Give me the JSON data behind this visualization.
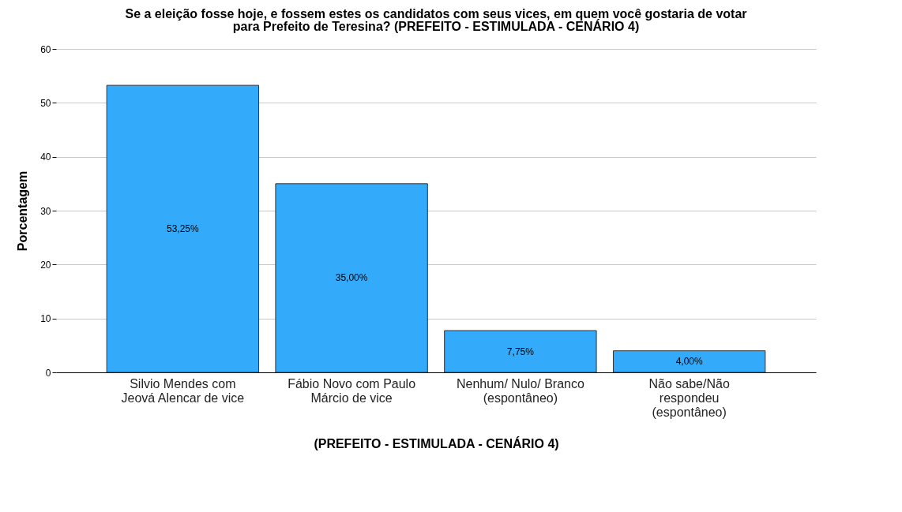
{
  "chart_data": {
    "type": "bar",
    "title": "Se a eleição fosse hoje, e fossem estes os candidatos com seus vices, em quem você gostaria de votar  para Prefeito de Teresina? (PREFEITO - ESTIMULADA - CENÁRIO 4)",
    "xlabel": "(PREFEITO - ESTIMULADA - CENÁRIO 4)",
    "ylabel": "Porcentagem",
    "categories": [
      "Silvio Mendes com Jeová Alencar de vice",
      "Fábio Novo com Paulo Márcio de vice",
      "Nenhum/ Nulo/ Branco (espontâneo)",
      "Não sabe/Não respondeu (espontâneo)"
    ],
    "values": [
      53.25,
      35.0,
      7.75,
      4.0
    ],
    "value_labels": [
      "53,25%",
      "35,00%",
      "7,75%",
      "4,00%"
    ],
    "color": "#33aafa",
    "ylim": [
      0,
      60
    ],
    "yticks": [
      0,
      10,
      20,
      30,
      40,
      50,
      60
    ],
    "grid": "y"
  }
}
